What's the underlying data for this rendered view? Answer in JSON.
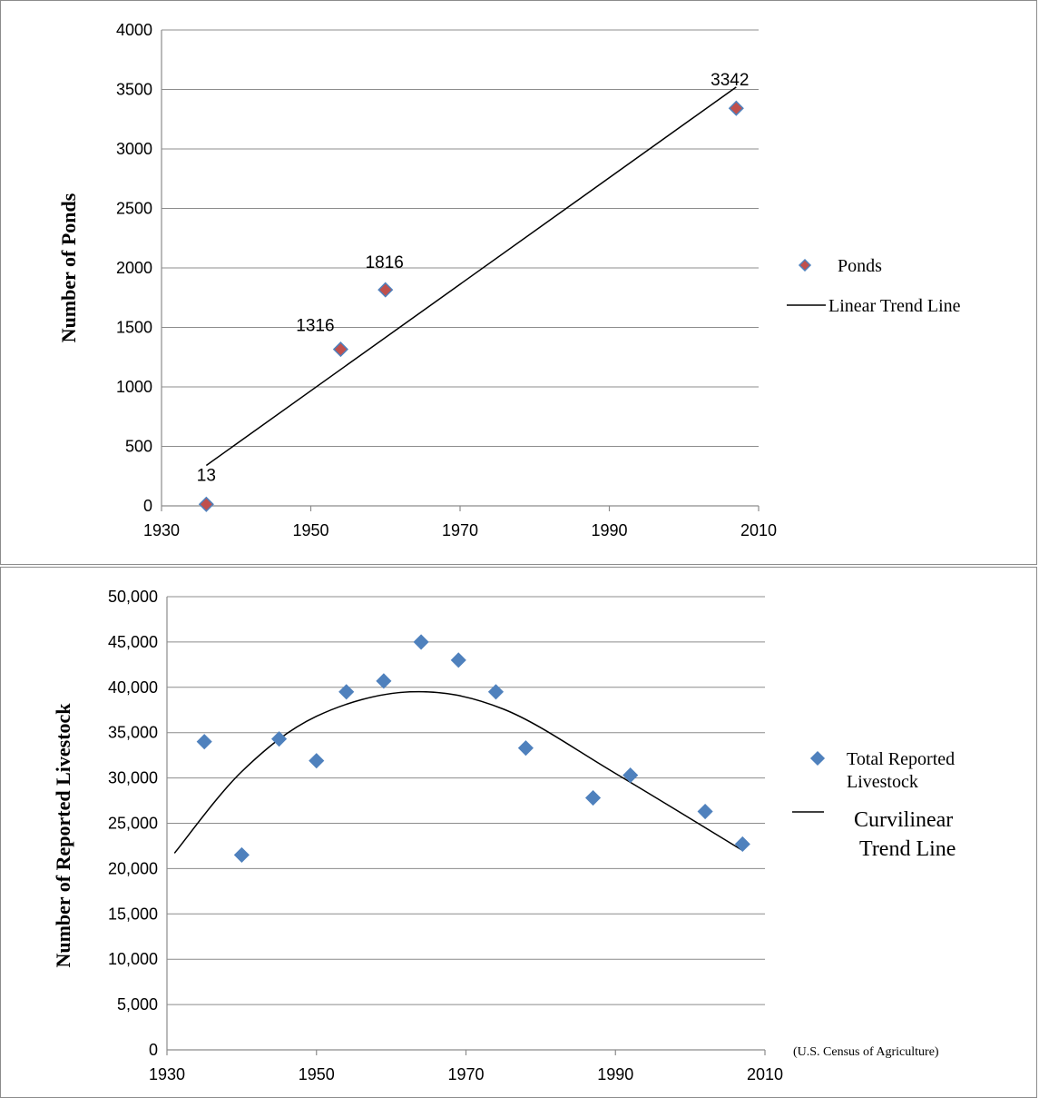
{
  "chart_data": [
    {
      "type": "scatter",
      "ylabel": "Number of Ponds",
      "xlim": [
        1930,
        2010
      ],
      "ylim": [
        0,
        4000
      ],
      "x_ticks": [
        "1930",
        "1950",
        "1970",
        "1990",
        "2010"
      ],
      "y_ticks": [
        "0",
        "500",
        "1000",
        "1500",
        "2000",
        "2500",
        "3000",
        "3500",
        "4000"
      ],
      "grid": true,
      "legend_position": "right",
      "series": [
        {
          "name": "Ponds",
          "marker": "diamond",
          "color": "#c0504d",
          "edge_color": "#4f81bd",
          "x": [
            1936,
            1954,
            1960,
            2007
          ],
          "y": [
            13,
            1316,
            1816,
            3342
          ],
          "labels": [
            "13",
            "1316",
            "1816",
            "3342"
          ]
        }
      ],
      "trend": {
        "name": "Linear Trend Line",
        "kind": "linear",
        "x": [
          1936,
          2007
        ],
        "y": [
          340,
          3520
        ]
      }
    },
    {
      "type": "scatter",
      "ylabel": "Number of Reported Livestock",
      "xlim": [
        1930,
        2010
      ],
      "ylim": [
        0,
        50000
      ],
      "x_ticks": [
        "1930",
        "1950",
        "1970",
        "1990",
        "2010"
      ],
      "y_ticks": [
        "0",
        "5,000",
        "10,000",
        "15,000",
        "20,000",
        "25,000",
        "30,000",
        "35,000",
        "40,000",
        "45,000",
        "50,000"
      ],
      "grid": true,
      "legend_position": "right",
      "annotation": "(U.S. Census of Agriculture)",
      "series": [
        {
          "name": "Total Reported Livestock",
          "legend_lines": [
            "Total Reported",
            "Livestock"
          ],
          "marker": "diamond",
          "color": "#4f81bd",
          "x": [
            1935,
            1940,
            1945,
            1950,
            1954,
            1959,
            1964,
            1969,
            1974,
            1978,
            1987,
            1992,
            2002,
            2007
          ],
          "y": [
            34000,
            21500,
            34300,
            31900,
            39500,
            40700,
            45000,
            43000,
            39500,
            33300,
            27800,
            30300,
            26300,
            22700
          ]
        }
      ],
      "trend": {
        "name": "Curvilinear Trend Line",
        "legend_lines": [
          "Curvilinear",
          "Trend Line"
        ],
        "kind": "quadratic",
        "x": [
          1931,
          1940,
          1950,
          1962.5,
          1975,
          1990,
          2007
        ],
        "y": [
          21700,
          30700,
          36800,
          39500,
          37600,
          30500,
          22000
        ]
      }
    }
  ]
}
